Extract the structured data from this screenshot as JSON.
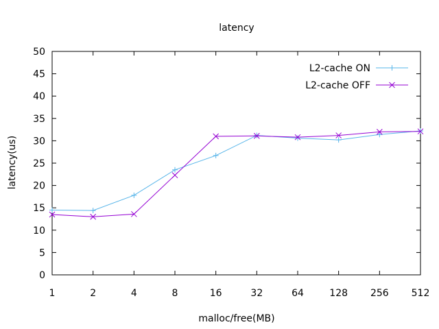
{
  "chart_data": {
    "type": "line",
    "title": "latency",
    "xlabel": "malloc/free(MB)",
    "ylabel": "latency(us)",
    "categories": [
      "1",
      "2",
      "4",
      "8",
      "16",
      "32",
      "64",
      "128",
      "256",
      "512"
    ],
    "ylim": [
      0,
      50
    ],
    "yticks": [
      "0",
      "5",
      "10",
      "15",
      "20",
      "25",
      "30",
      "35",
      "40",
      "45",
      "50"
    ],
    "grid": false,
    "legend_position": "top-right",
    "series": [
      {
        "name": "L2-cache ON",
        "color": "#56b4e9",
        "marker": "plus",
        "values": [
          14.5,
          14.4,
          17.8,
          23.5,
          26.7,
          31.2,
          30.6,
          30.2,
          31.4,
          32.2
        ]
      },
      {
        "name": "L2-cache OFF",
        "color": "#9400d3",
        "marker": "cross",
        "values": [
          13.5,
          13.0,
          13.6,
          22.3,
          31.0,
          31.1,
          30.8,
          31.2,
          32.0,
          32.1
        ]
      }
    ]
  }
}
